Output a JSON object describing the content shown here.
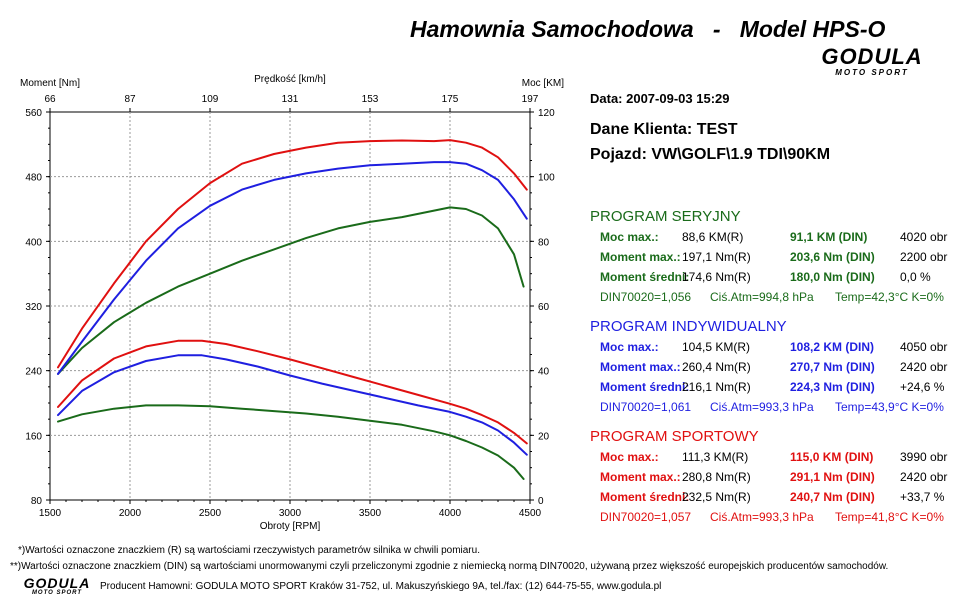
{
  "header": {
    "title": "Hamownia Samochodowa   -   Model HPS-O",
    "logo_text": "GODULA",
    "logo_sub": "MOTO SPORT"
  },
  "colors": {
    "serial": "#1a6b1a",
    "individual": "#1f1fe0",
    "sport": "#e01010"
  },
  "info": {
    "date": "Data: 2007-09-03  15:29",
    "client": "Dane Klienta: TEST",
    "vehicle": "Pojazd: VW\\GOLF\\1.9 TDI\\90KM"
  },
  "programs": [
    {
      "title": "PROGRAM SERYJNY",
      "color": "#1a6b1a",
      "rows": [
        {
          "label": "Moc max.:",
          "r": "88,6 KM(R)",
          "din": "91,1 KM (DIN)",
          "extra": "4020 obr"
        },
        {
          "label": "Moment max.:",
          "r": "197,1 Nm(R)",
          "din": "203,6 Nm (DIN)",
          "extra": "2200 obr"
        },
        {
          "label": "Moment średni:",
          "r": "174,6 Nm(R)",
          "din": "180,0 Nm (DIN)",
          "extra": "0,0 %"
        }
      ],
      "din": "DIN70020=1,056",
      "atm": "Ciś.Atm=994,8 hPa",
      "temp": "Temp=42,3°C  K=0%"
    },
    {
      "title": "PROGRAM INDYWIDUALNY",
      "color": "#1f1fe0",
      "rows": [
        {
          "label": "Moc max.:",
          "r": "104,5 KM(R)",
          "din": "108,2 KM (DIN)",
          "extra": "4050 obr"
        },
        {
          "label": "Moment max.:",
          "r": "260,4 Nm(R)",
          "din": "270,7 Nm (DIN)",
          "extra": "2420 obr"
        },
        {
          "label": "Moment średni:",
          "r": "216,1 Nm(R)",
          "din": "224,3 Nm (DIN)",
          "extra": "+24,6 %"
        }
      ],
      "din": "DIN70020=1,061",
      "atm": "Ciś.Atm=993,3 hPa",
      "temp": "Temp=43,9°C  K=0%"
    },
    {
      "title": "PROGRAM SPORTOWY",
      "color": "#e01010",
      "rows": [
        {
          "label": "Moc max.:",
          "r": "111,3 KM(R)",
          "din": "115,0 KM (DIN)",
          "extra": "3990 obr"
        },
        {
          "label": "Moment max.:",
          "r": "280,8 Nm(R)",
          "din": "291,1 Nm (DIN)",
          "extra": "2420 obr"
        },
        {
          "label": "Moment średni:",
          "r": "232,5 Nm(R)",
          "din": "240,7 Nm (DIN)",
          "extra": "+33,7 %"
        }
      ],
      "din": "DIN70020=1,057",
      "atm": "Ciś.Atm=993,3 hPa",
      "temp": "Temp=41,8°C  K=0%"
    }
  ],
  "footnotes": {
    "note1": "*)Wartości oznaczone znaczkiem (R) są wartościami rzeczywistych parametrów silnika w chwili pomiaru.",
    "note2": "**)Wartości oznaczone znaczkiem (DIN) są wartościami unormowanymi czyli przeliczonymi zgodnie z niemiecką normą DIN70020, używaną przez większość europejskich producentów samochodów.",
    "producer": "Producent Hamowni: GODULA MOTO SPORT Kraków 31-752, ul. Makuszyńskiego 9A, tel./fax: (12) 644-75-55, www.godula.pl"
  },
  "chart_data": {
    "type": "line",
    "xlabel": "Obroty [RPM]",
    "ylabel_left": "Moment [Nm]",
    "ylabel_right": "Moc [KM]",
    "top_axis_label": "Prędkość [km/h]",
    "xlim": [
      1500,
      4500
    ],
    "ylim_left": [
      80,
      560
    ],
    "ylim_right": [
      0,
      120
    ],
    "x_ticks": [
      "1500",
      "2000",
      "2500",
      "3000",
      "3500",
      "4000",
      "4500"
    ],
    "left_ticks": [
      "80",
      "160",
      "240",
      "320",
      "400",
      "480",
      "560"
    ],
    "right_ticks": [
      "0",
      "20",
      "40",
      "60",
      "80",
      "100",
      "120"
    ],
    "top_ticks": [
      "66",
      "87",
      "109",
      "131",
      "153",
      "175",
      "197"
    ],
    "grid": true,
    "series": [
      {
        "name": "PROGRAM SERYJNY",
        "quantity": "power",
        "axis": "right",
        "color": "#1a6b1a",
        "x": [
          1550,
          1700,
          1900,
          2100,
          2300,
          2500,
          2700,
          2900,
          3100,
          3300,
          3500,
          3700,
          3900,
          4000,
          4100,
          4200,
          4300,
          4400,
          4460
        ],
        "y": [
          39,
          47,
          55,
          61,
          66,
          70,
          74,
          77.5,
          81,
          84,
          86,
          87.5,
          89.5,
          90.5,
          90,
          88,
          84,
          76,
          66
        ]
      },
      {
        "name": "PROGRAM INDYWIDUALNY",
        "quantity": "power",
        "axis": "right",
        "color": "#1f1fe0",
        "x": [
          1550,
          1700,
          1900,
          2100,
          2300,
          2500,
          2700,
          2900,
          3100,
          3300,
          3500,
          3700,
          3900,
          4000,
          4100,
          4200,
          4300,
          4400,
          4480
        ],
        "y": [
          39,
          49,
          62,
          74,
          84,
          91,
          96,
          99,
          101,
          102.5,
          103.5,
          104,
          104.5,
          104.5,
          104,
          102,
          99,
          93,
          87
        ]
      },
      {
        "name": "PROGRAM SPORTOWY",
        "quantity": "power",
        "axis": "right",
        "color": "#e01010",
        "x": [
          1550,
          1700,
          1900,
          2100,
          2300,
          2500,
          2700,
          2900,
          3100,
          3300,
          3500,
          3700,
          3900,
          4000,
          4100,
          4200,
          4300,
          4400,
          4480
        ],
        "y": [
          41,
          53,
          67,
          80,
          90,
          98,
          104,
          107,
          109,
          110.5,
          111,
          111.2,
          111,
          111.3,
          110.5,
          109,
          106,
          101,
          96
        ]
      },
      {
        "name": "PROGRAM SERYJNY",
        "quantity": "torque",
        "axis": "left",
        "color": "#1a6b1a",
        "x": [
          1550,
          1700,
          1900,
          2100,
          2300,
          2500,
          2700,
          2900,
          3100,
          3300,
          3500,
          3700,
          3900,
          4000,
          4100,
          4200,
          4300,
          4400,
          4460
        ],
        "y": [
          177,
          186,
          193,
          197,
          197,
          196,
          193,
          190,
          187,
          183,
          178,
          173,
          165,
          160,
          153,
          145,
          135,
          120,
          106
        ]
      },
      {
        "name": "PROGRAM INDYWIDUALNY",
        "quantity": "torque",
        "axis": "left",
        "color": "#1f1fe0",
        "x": [
          1550,
          1700,
          1900,
          2100,
          2300,
          2450,
          2600,
          2800,
          3000,
          3200,
          3400,
          3600,
          3800,
          4000,
          4100,
          4200,
          4300,
          4400,
          4480
        ],
        "y": [
          185,
          215,
          238,
          252,
          259,
          259,
          254,
          245,
          234,
          224,
          215,
          206,
          197,
          189,
          183,
          176,
          166,
          151,
          136
        ]
      },
      {
        "name": "PROGRAM SPORTOWY",
        "quantity": "torque",
        "axis": "left",
        "color": "#e01010",
        "x": [
          1550,
          1700,
          1900,
          2100,
          2300,
          2450,
          2600,
          2800,
          3000,
          3200,
          3400,
          3600,
          3800,
          4000,
          4100,
          4200,
          4300,
          4400,
          4480
        ],
        "y": [
          195,
          228,
          255,
          270,
          277,
          277,
          273,
          264,
          254,
          243,
          232,
          221,
          210,
          199,
          193,
          185,
          176,
          163,
          150
        ]
      }
    ]
  }
}
